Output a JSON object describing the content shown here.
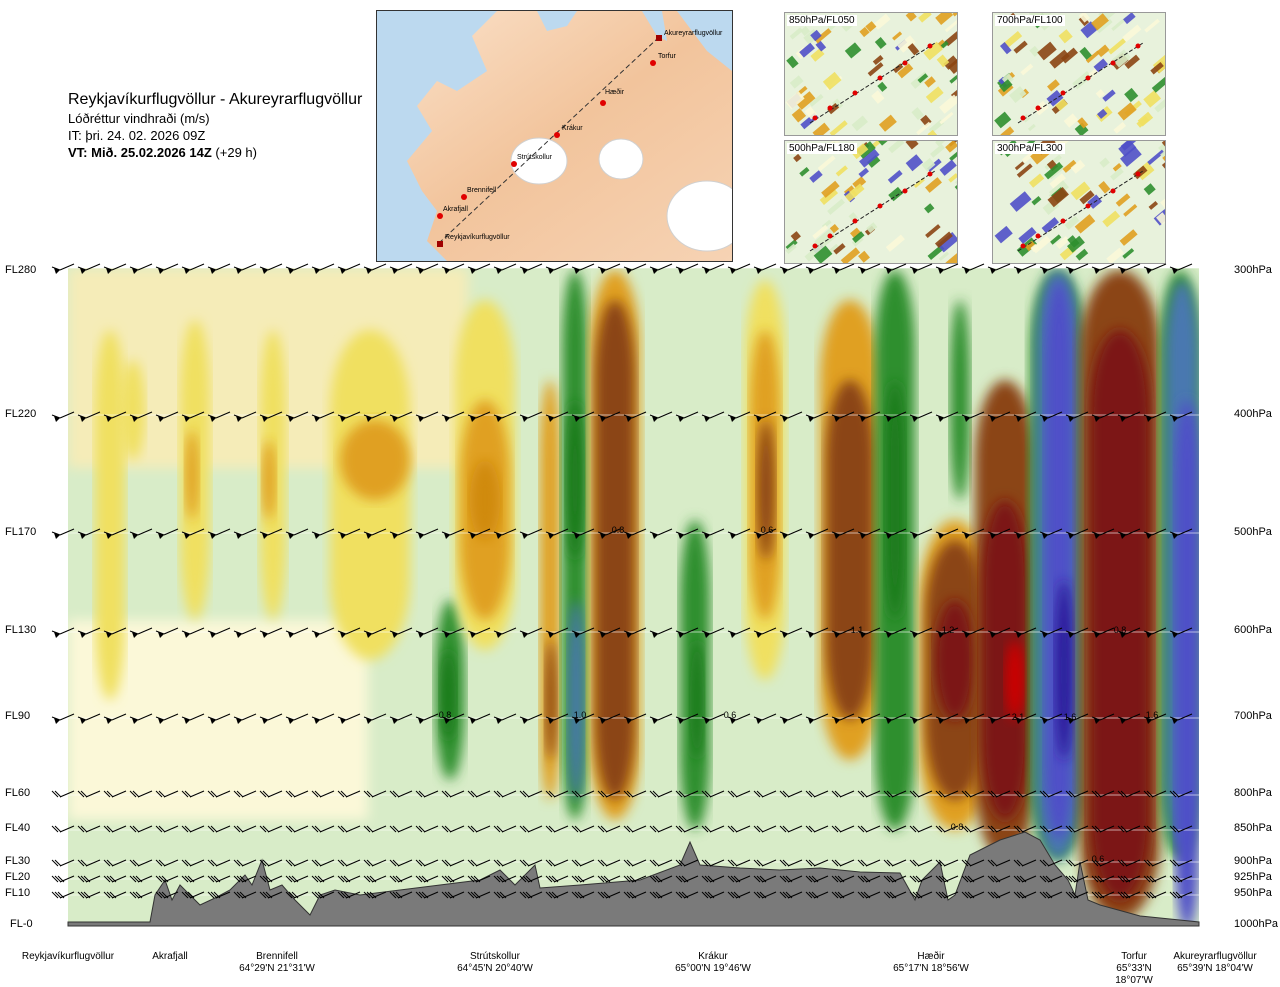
{
  "header": {
    "route": "Reykjavíkurflugvöllur - Akureyrarflugvöllur",
    "quantity": "Lóðréttur vindhraði (m/s)",
    "issue": "IT: þri. 24. 02. 2026 09Z",
    "valid_bold": "VT: Mið. 25.02.2026 14Z",
    "valid_rest": "(+29 h)"
  },
  "route_map": {
    "towns": [
      "Akureyrarflugvöllur",
      "Torfur",
      "Hæðir",
      "Krákur",
      "Strútskollur",
      "Brennifell",
      "Akrafjall",
      "Reykjavíkurflugvöllur"
    ]
  },
  "level_maps": [
    "850hPa/FL050",
    "700hPa/FL100",
    "500hPa/FL180",
    "300hPa/FL300"
  ],
  "colors": {
    "sink_strong": "#7b1414",
    "sink_mid": "#8b4513",
    "sink_light": "#e0a020",
    "sink_weak": "#f0e060",
    "rise_weak": "#cde8c0",
    "rise_mid": "#2f8f2f",
    "rise_strong": "#5050c8",
    "terrain": "#7a7a7a"
  },
  "chart_data": {
    "type": "heatmap",
    "title": "Lóðréttur vindhraði (m/s)",
    "left_axis_levels": [
      "FL280",
      "FL220",
      "FL170",
      "FL130",
      "FL90",
      "FL60",
      "FL40",
      "FL30",
      "FL20",
      "FL10",
      "FL-0"
    ],
    "right_axis_levels": [
      "300hPa",
      "400hPa",
      "500hPa",
      "600hPa",
      "700hPa",
      "800hPa",
      "850hPa",
      "900hPa",
      "925hPa",
      "950hPa",
      "1000hPa"
    ],
    "stations": [
      {
        "name": "Reykjavíkurflugvöllur",
        "coords": ""
      },
      {
        "name": "Akrafjall",
        "coords": ""
      },
      {
        "name": "Brennifell",
        "coords": "64°29'N 21°31'W"
      },
      {
        "name": "Strútskollur",
        "coords": "64°45'N 20°40'W"
      },
      {
        "name": "Krákur",
        "coords": "65°00'N 19°46'W"
      },
      {
        "name": "Hæðir",
        "coords": "65°17'N 18°56'W"
      },
      {
        "name": "Torfur",
        "coords": "65°33'N 18°07'W"
      },
      {
        "name": "Akureyrarflugvöllur",
        "coords": "65°39'N 18°04'W"
      }
    ],
    "annotations": [
      "0.8",
      "1.0",
      "0.8",
      "0.6",
      "0.6",
      "1.1",
      "1.2",
      "0.8",
      "0.6",
      "2.1",
      "1.6",
      "1.6",
      "0.8"
    ]
  }
}
